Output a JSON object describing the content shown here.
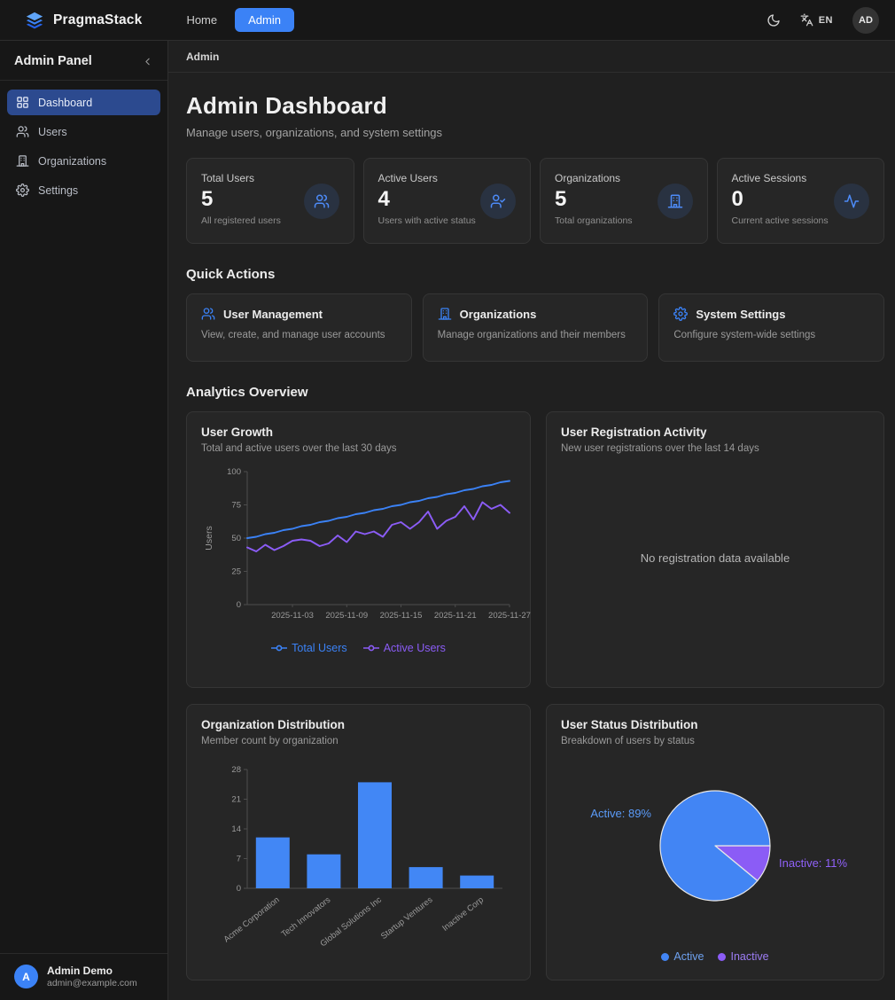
{
  "navbar": {
    "brand": "PragmaStack",
    "links": [
      {
        "label": "Home",
        "active": false
      },
      {
        "label": "Admin",
        "active": true
      }
    ],
    "language": "EN",
    "avatar_initials": "AD"
  },
  "sidebar": {
    "title": "Admin Panel",
    "collapse_glyph": "‹",
    "items": [
      {
        "label": "Dashboard",
        "icon": "grid-icon",
        "active": true
      },
      {
        "label": "Users",
        "icon": "users-icon",
        "active": false
      },
      {
        "label": "Organizations",
        "icon": "building-icon",
        "active": false
      },
      {
        "label": "Settings",
        "icon": "gear-icon",
        "active": false
      }
    ],
    "user": {
      "initial": "A",
      "name": "Admin Demo",
      "email": "admin@example.com"
    }
  },
  "breadcrumb": "Admin",
  "page": {
    "title": "Admin Dashboard",
    "subtitle": "Manage users, organizations, and system settings"
  },
  "stats": {
    "cards": [
      {
        "label": "Total Users",
        "value": "5",
        "description": "All registered users",
        "icon": "users-icon"
      },
      {
        "label": "Active Users",
        "value": "4",
        "description": "Users with active status",
        "icon": "user-check-icon"
      },
      {
        "label": "Organizations",
        "value": "5",
        "description": "Total organizations",
        "icon": "building-icon"
      },
      {
        "label": "Active Sessions",
        "value": "0",
        "description": "Current active sessions",
        "icon": "activity-icon"
      }
    ]
  },
  "quick_actions": {
    "heading": "Quick Actions",
    "cards": [
      {
        "title": "User Management",
        "description": "View, create, and manage user accounts",
        "icon": "users-icon"
      },
      {
        "title": "Organizations",
        "description": "Manage organizations and their members",
        "icon": "building-icon"
      },
      {
        "title": "System Settings",
        "description": "Configure system-wide settings",
        "icon": "gear-icon"
      }
    ]
  },
  "analytics": {
    "heading": "Analytics Overview"
  },
  "chart_data": [
    {
      "id": "user-growth",
      "type": "line",
      "title": "User Growth",
      "subtitle": "Total and active users over the last 30 days",
      "ylabel": "Users",
      "ylim": [
        0,
        100
      ],
      "yticks": [
        0,
        25,
        50,
        75,
        100
      ],
      "xticks": [
        "2025-11-03",
        "2025-11-09",
        "2025-11-15",
        "2025-11-21",
        "2025-11-27"
      ],
      "xtick_indices": [
        5,
        11,
        17,
        23,
        29
      ],
      "grid": false,
      "legend_position": "bottom",
      "series": [
        {
          "name": "Total Users",
          "color": "#3b82f6",
          "values": [
            50,
            51,
            53,
            54,
            56,
            57,
            59,
            60,
            62,
            63,
            65,
            66,
            68,
            69,
            71,
            72,
            74,
            75,
            77,
            78,
            80,
            81,
            83,
            84,
            86,
            87,
            89,
            90,
            92,
            93
          ]
        },
        {
          "name": "Active Users",
          "color": "#8b5cf6",
          "values": [
            43,
            40,
            45,
            41,
            44,
            48,
            49,
            48,
            44,
            46,
            52,
            47,
            55,
            53,
            55,
            51,
            60,
            62,
            57,
            62,
            70,
            57,
            63,
            66,
            74,
            64,
            77,
            72,
            75,
            69
          ]
        }
      ]
    },
    {
      "id": "registration-activity",
      "type": "line",
      "title": "User Registration Activity",
      "subtitle": "New user registrations over the last 14 days",
      "empty_message": "No registration data available",
      "series": []
    },
    {
      "id": "org-distribution",
      "type": "bar",
      "title": "Organization Distribution",
      "subtitle": "Member count by organization",
      "categories": [
        "Acme Corporation",
        "Tech Innovators",
        "Global Solutions Inc",
        "Startup Ventures",
        "Inactive Corp"
      ],
      "values": [
        12,
        8,
        25,
        5,
        3
      ],
      "ylim": [
        0,
        28
      ],
      "yticks": [
        0,
        7,
        14,
        21,
        28
      ],
      "bar_color": "#4287f5",
      "grid": false
    },
    {
      "id": "user-status",
      "type": "pie",
      "title": "User Status Distribution",
      "subtitle": "Breakdown of users by status",
      "slices": [
        {
          "label": "Active",
          "pct": 89,
          "color": "#4285f4",
          "annotation": "Active: 89%"
        },
        {
          "label": "Inactive",
          "pct": 11,
          "color": "#8b5cf6",
          "annotation": "Inactive: 11%"
        }
      ],
      "legend_position": "bottom"
    }
  ],
  "colors": {
    "accent_blue": "#3b82f6",
    "accent_purple": "#8b5cf6",
    "sidebar_active_bg": "#2c4a8f",
    "card_bg": "#262626",
    "page_bg": "#202020",
    "topbar_bg": "#171717"
  }
}
